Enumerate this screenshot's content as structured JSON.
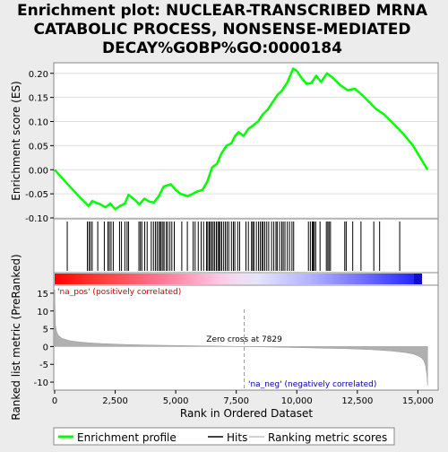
{
  "chart_data": {
    "type": "line",
    "title_lines": [
      "Enrichment plot: NUCLEAR-TRANSCRIBED MRNA",
      "CATABOLIC PROCESS, NONSENSE-MEDIATED",
      "DECAY%GOBP%GO:0000184"
    ],
    "top_panel": {
      "ylabel": "Enrichment score (ES)",
      "ylim": [
        -0.1,
        0.22
      ],
      "yticks": [
        "0.20",
        "0.15",
        "0.10",
        "0.05",
        "0.00",
        "-0.05",
        "-0.10"
      ],
      "ytick_values": [
        0.2,
        0.15,
        0.1,
        0.05,
        0.0,
        -0.05,
        -0.1
      ],
      "series": [
        {
          "name": "Enrichment profile",
          "color": "#00ff00",
          "x": [
            0,
            500,
            1000,
            1400,
            1550,
            1900,
            2100,
            2300,
            2500,
            2700,
            2900,
            3050,
            3300,
            3500,
            3700,
            3900,
            4100,
            4300,
            4500,
            4800,
            5000,
            5200,
            5500,
            5700,
            5900,
            6100,
            6300,
            6500,
            6700,
            6900,
            7100,
            7300,
            7450,
            7600,
            7800,
            8000,
            8200,
            8400,
            8600,
            8800,
            9000,
            9200,
            9400,
            9600,
            9850,
            10000,
            10200,
            10400,
            10600,
            10800,
            11000,
            11250,
            11500,
            11800,
            12100,
            12400,
            12700,
            13000,
            13300,
            13600,
            13900,
            14200,
            14500,
            14800,
            15100,
            15400
          ],
          "y": [
            0.0,
            -0.028,
            -0.055,
            -0.075,
            -0.065,
            -0.072,
            -0.078,
            -0.07,
            -0.082,
            -0.075,
            -0.07,
            -0.052,
            -0.062,
            -0.072,
            -0.06,
            -0.066,
            -0.068,
            -0.055,
            -0.035,
            -0.03,
            -0.042,
            -0.05,
            -0.055,
            -0.05,
            -0.045,
            -0.042,
            -0.025,
            0.005,
            0.012,
            0.035,
            0.05,
            0.055,
            0.07,
            0.078,
            0.07,
            0.085,
            0.092,
            0.1,
            0.115,
            0.125,
            0.14,
            0.155,
            0.165,
            0.18,
            0.21,
            0.205,
            0.19,
            0.178,
            0.18,
            0.195,
            0.182,
            0.2,
            0.19,
            0.175,
            0.165,
            0.168,
            0.155,
            0.14,
            0.125,
            0.115,
            0.1,
            0.085,
            0.068,
            0.05,
            0.025,
            0.0
          ]
        }
      ]
    },
    "hits_panel": {
      "series_name": "Hits",
      "positions": [
        520,
        1350,
        1420,
        1480,
        1550,
        1780,
        2050,
        2200,
        2260,
        2330,
        2420,
        2680,
        2760,
        2900,
        2990,
        3050,
        3480,
        3540,
        3600,
        3720,
        3820,
        3990,
        4080,
        4160,
        4230,
        4300,
        4360,
        4400,
        4470,
        4520,
        4610,
        4670,
        4760,
        4840,
        4940,
        5250,
        5480,
        5720,
        5800,
        5930,
        6050,
        6150,
        6270,
        6320,
        6380,
        6430,
        6490,
        6550,
        6610,
        6680,
        6740,
        6790,
        6840,
        6900,
        6980,
        7050,
        7120,
        7190,
        7300,
        7380,
        7440,
        7560,
        7640,
        7900,
        8000,
        8130,
        8180,
        8230,
        8330,
        8420,
        8490,
        8560,
        8610,
        8680,
        8760,
        8840,
        8960,
        9050,
        9140,
        9190,
        9290,
        9380,
        9440,
        9510,
        9610,
        9700,
        9800,
        9870,
        10480,
        10560,
        10640,
        10680,
        10720,
        10780,
        10960,
        11220,
        11280,
        11330,
        11390,
        11980,
        12040,
        12310,
        12650,
        13180,
        13420,
        14250
      ]
    },
    "metric_panel": {
      "series_name": "Ranking metric scores",
      "ylabel": "Ranked list metric (PreRanked)",
      "xlabel": "Rank in Ordered Dataset",
      "ylim": [
        -12,
        17
      ],
      "yticks": [
        "15",
        "10",
        "5",
        "0",
        "-5",
        "-10"
      ],
      "ytick_values": [
        15,
        10,
        5,
        0,
        -5,
        -10
      ],
      "xticks": [
        "0",
        "2,500",
        "5,000",
        "7,500",
        "10,000",
        "12,500",
        "15,000"
      ],
      "xtick_values": [
        0,
        2500,
        5000,
        7500,
        10000,
        12500,
        15000
      ],
      "xlim": [
        0,
        15800
      ],
      "curve_x": [
        0,
        30,
        80,
        150,
        300,
        600,
        1000,
        1500,
        2000,
        3000,
        4000,
        5000,
        6000,
        7000,
        7829,
        9000,
        10000,
        11000,
        12000,
        13000,
        13500,
        14000,
        14500,
        14800,
        15000,
        15150,
        15250,
        15320,
        15370,
        15400
      ],
      "curve_y": [
        16,
        6,
        4.2,
        3.2,
        2.3,
        1.7,
        1.3,
        1.0,
        0.8,
        0.55,
        0.4,
        0.3,
        0.2,
        0.1,
        0.0,
        -0.15,
        -0.3,
        -0.45,
        -0.6,
        -0.85,
        -1.05,
        -1.3,
        -1.7,
        -2.1,
        -2.6,
        -3.2,
        -4.0,
        -5.5,
        -8.0,
        -11.0
      ],
      "zero_cross_label": "Zero cross at 7829",
      "zero_cross_x": 7829,
      "pos_label": "'na_pos' (positively correlated)",
      "neg_label": "'na_neg' (negatively correlated)"
    },
    "legend": {
      "placement": "bottom",
      "items": [
        {
          "label": "Enrichment profile",
          "color": "#00ff00"
        },
        {
          "label": "Hits",
          "color": "#000000"
        },
        {
          "label": "Ranking metric scores",
          "color": "#c0c0c0"
        }
      ]
    },
    "colors": {
      "positive_text": "#cc0000",
      "negative_text": "#0000aa",
      "gradient_red": "#ff0000",
      "gradient_blue": "#0000ff",
      "metric_fill": "#b0b0b0"
    }
  }
}
